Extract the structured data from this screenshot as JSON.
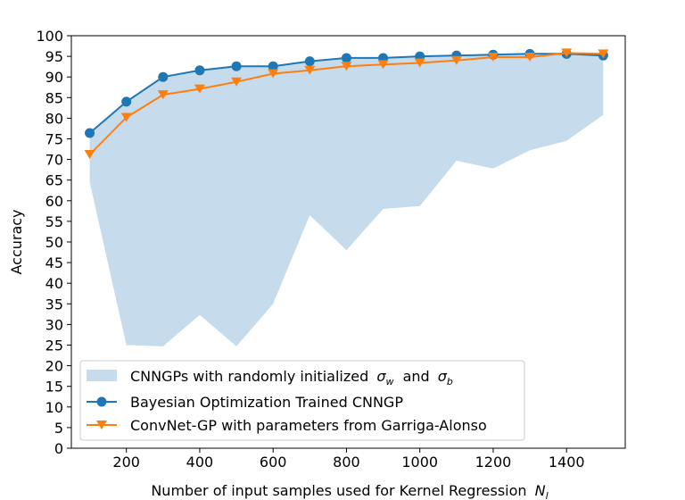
{
  "chart_data": {
    "type": "line",
    "title": "",
    "xlabel": "Number of input samples used for Kernel Regression",
    "xlabel_math": "N",
    "xlabel_math_sub": "l",
    "ylabel": "Accuracy",
    "xlim": [
      50,
      1560
    ],
    "ylim": [
      0,
      100
    ],
    "x_ticks": [
      200,
      400,
      600,
      800,
      1000,
      1200,
      1400
    ],
    "y_ticks": [
      0,
      5,
      10,
      15,
      20,
      25,
      30,
      35,
      40,
      45,
      50,
      55,
      60,
      65,
      70,
      75,
      80,
      85,
      90,
      95,
      100
    ],
    "grid": false,
    "legend_position": "lower-left",
    "x": [
      100,
      200,
      300,
      400,
      500,
      600,
      700,
      800,
      900,
      1000,
      1100,
      1200,
      1300,
      1400,
      1500
    ],
    "band": {
      "name": "CNNGPs with randomly initialized",
      "name_mid": "and",
      "sym1": "σ",
      "sym1_sub": "w",
      "sym2": "σ",
      "sym2_sub": "b",
      "color": "#c6dbec",
      "lower": [
        64.5,
        25.0,
        24.7,
        32.3,
        24.7,
        35.0,
        56.5,
        48.0,
        58.0,
        58.7,
        69.7,
        67.8,
        72.2,
        74.5,
        80.8
      ],
      "upper": [
        76.4,
        84.0,
        90.0,
        91.6,
        92.6,
        92.6,
        93.8,
        94.6,
        94.6,
        95.0,
        95.2,
        95.4,
        95.6,
        95.8,
        95.2
      ]
    },
    "series": [
      {
        "name": "Bayesian Optimization Trained CNNGP",
        "color": "#1f77b4",
        "marker": "circle",
        "values": [
          76.4,
          84.0,
          90.0,
          91.6,
          92.6,
          92.6,
          93.8,
          94.6,
          94.6,
          95.0,
          95.2,
          95.4,
          95.6,
          95.6,
          95.2
        ]
      },
      {
        "name": "ConvNet-GP with parameters from Garriga-Alonso",
        "color": "#ff7f0e",
        "marker": "triangle-down",
        "values": [
          71.2,
          80.2,
          85.7,
          87.1,
          88.8,
          90.8,
          91.6,
          92.6,
          93.0,
          93.4,
          94.0,
          94.8,
          94.8,
          95.8,
          95.6
        ]
      }
    ]
  }
}
